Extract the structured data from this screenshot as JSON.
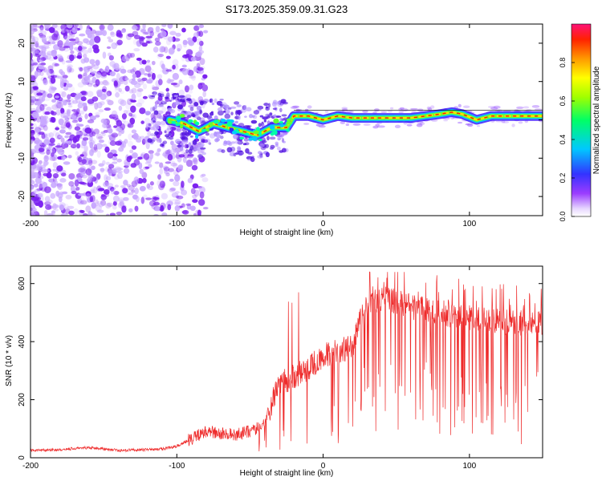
{
  "title": "S173.2025.359.09.31.G23",
  "chart_data": [
    {
      "type": "heatmap",
      "xlabel": "Height of straight line (km)",
      "ylabel": "Frequency (Hz)",
      "xlim": [
        -200,
        150
      ],
      "ylim": [
        -25,
        25
      ],
      "xticks": [
        -200,
        -100,
        0,
        100
      ],
      "yticks": [
        -20,
        -10,
        0,
        10,
        20
      ],
      "colorbar": {
        "label": "Normalized spectral amplitude",
        "range": [
          0,
          1
        ],
        "ticks": [
          "0.0",
          "0.2",
          "0.4",
          "0.6",
          "0.8"
        ]
      },
      "ridge": {
        "x": [
          -105,
          -95,
          -85,
          -75,
          -65,
          -55,
          -45,
          -35,
          -25,
          -20,
          -10,
          0,
          10,
          20,
          40,
          60,
          80,
          88,
          95,
          105,
          115,
          130,
          150
        ],
        "y": [
          0,
          -1,
          -3,
          -1,
          -2,
          -3,
          -4,
          -2,
          -2,
          1,
          1,
          0,
          1,
          0.5,
          0.5,
          0.5,
          1.5,
          2,
          1.5,
          0,
          1,
          1,
          1
        ]
      }
    },
    {
      "type": "line",
      "xlabel": "Height of straight line (km)",
      "ylabel": "SNR (10 * v/v)",
      "xlim": [
        -200,
        150
      ],
      "ylim": [
        0,
        660
      ],
      "xticks": [
        -200,
        -100,
        0,
        100
      ],
      "yticks": [
        0,
        200,
        400,
        600
      ],
      "color": "#ee2a2a",
      "series": [
        {
          "name": "SNR",
          "x": [
            -200,
            -180,
            -160,
            -140,
            -120,
            -110,
            -100,
            -90,
            -80,
            -70,
            -60,
            -50,
            -40,
            -35,
            -30,
            -20,
            -10,
            0,
            10,
            20,
            25,
            30,
            40,
            50,
            60,
            80,
            100,
            120,
            150
          ],
          "values": [
            25,
            28,
            35,
            25,
            28,
            30,
            40,
            65,
            90,
            85,
            80,
            90,
            120,
            190,
            250,
            280,
            310,
            350,
            370,
            380,
            470,
            520,
            550,
            540,
            520,
            500,
            480,
            470,
            460
          ]
        }
      ]
    }
  ]
}
